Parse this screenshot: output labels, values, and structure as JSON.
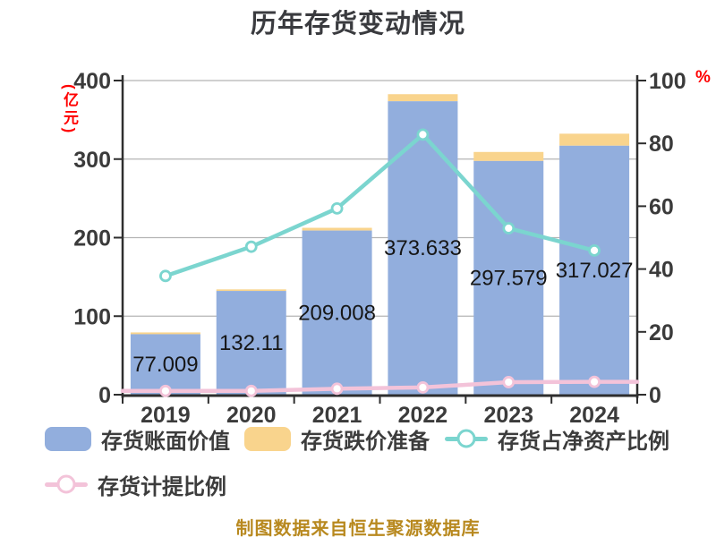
{
  "title": "历年存货变动情况",
  "footer": "制图数据来自恒生聚源数据库",
  "legend": {
    "items": [
      {
        "label": "存货账面价值",
        "type": "bar",
        "color": "#92aedd"
      },
      {
        "label": "存货跌价准备",
        "type": "bar",
        "color": "#f9d48d"
      },
      {
        "label": "存货占净资产比例",
        "type": "line",
        "color": "#7bd5cf"
      },
      {
        "label": "存货计提比例",
        "type": "line",
        "color": "#f3c3d9"
      }
    ]
  },
  "chart_data": {
    "type": "bar",
    "title": "历年存货变动情况",
    "categories": [
      "2019",
      "2020",
      "2021",
      "2022",
      "2023",
      "2024"
    ],
    "series": [
      {
        "name": "存货账面价值",
        "render": "bar",
        "axis": "left",
        "values": [
          77.009,
          132.11,
          209.008,
          373.633,
          297.579,
          317.027
        ],
        "value_labels": [
          "77.009",
          "132.11",
          "209.008",
          "373.633",
          "297.579",
          "317.027"
        ],
        "color": "#92aedd"
      },
      {
        "name": "存货跌价准备",
        "render": "bar-stacked",
        "axis": "left",
        "values": [
          2.3,
          2.0,
          3.5,
          9.0,
          11.5,
          15.3
        ],
        "color": "#f9d48d"
      },
      {
        "name": "存货占净资产比例",
        "render": "line",
        "axis": "right",
        "values": [
          37.8,
          47.1,
          59.3,
          82.8,
          53.0,
          45.9
        ],
        "color": "#7bd5cf",
        "marker_fill": "#ffffff",
        "extend_to_edges": false
      },
      {
        "name": "存货计提比例",
        "render": "line",
        "axis": "right",
        "values": [
          1.2,
          1.2,
          1.9,
          2.3,
          4.0,
          4.1
        ],
        "color": "#f3c3d9",
        "marker_fill": "#ffffff",
        "extend_to_edges": true
      }
    ],
    "left_axis": {
      "label": "(亿元)",
      "min": 0,
      "max": 400,
      "ticks": [
        0,
        100,
        200,
        300,
        400
      ]
    },
    "right_axis": {
      "label": "%",
      "min": 0,
      "max": 100,
      "ticks": [
        0,
        20,
        40,
        60,
        80,
        100
      ]
    },
    "grid": "horizontal",
    "legend_position": "bottom",
    "colors": {
      "grid_line": "#b4b4b4",
      "axis_line": "#2e2e2e",
      "tick_text": "#3b3b3b",
      "title_text": "#3a3b3f",
      "unit_text": "#ff0000",
      "footer_text": "#b8891f"
    }
  }
}
